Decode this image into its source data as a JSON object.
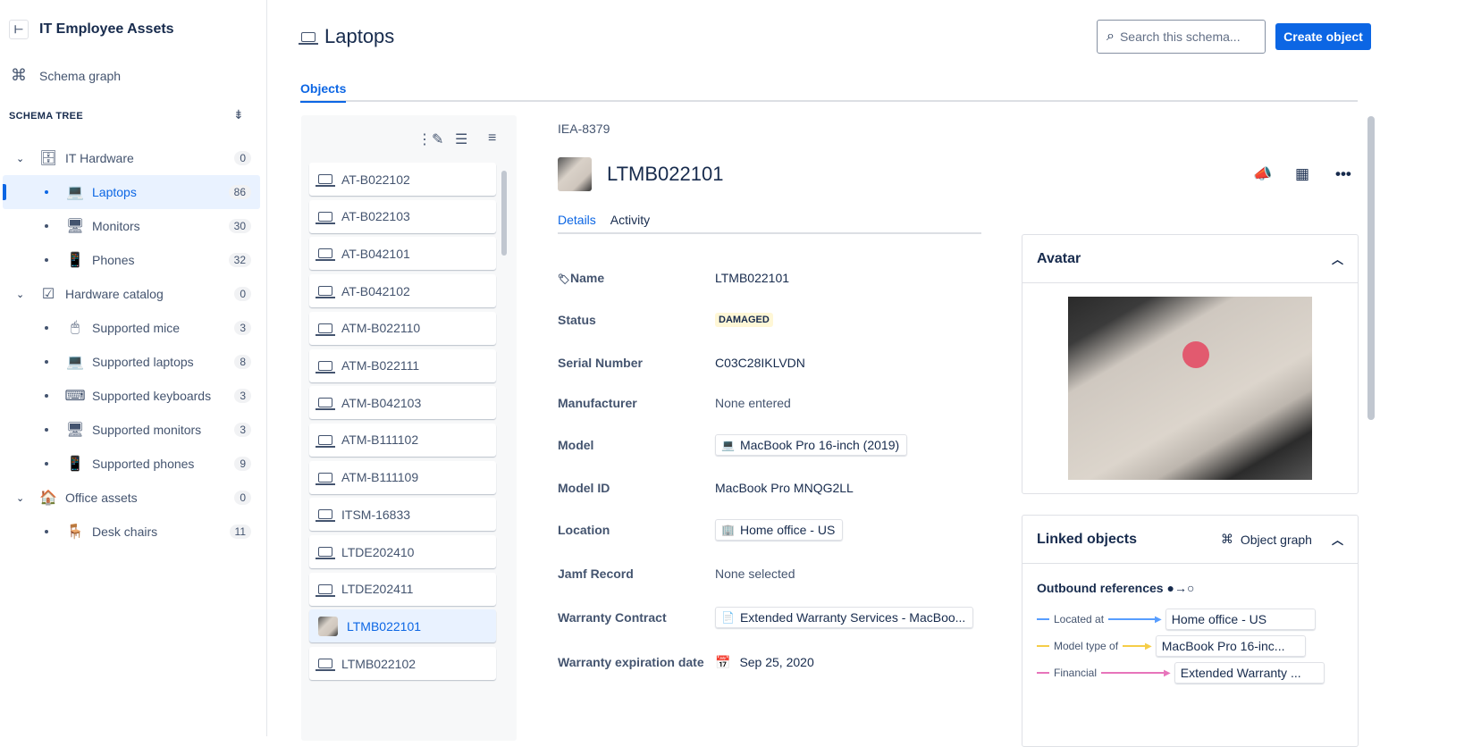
{
  "sidebar": {
    "title": "IT Employee Assets",
    "schema_graph": "Schema graph",
    "tree_heading": "SCHEMA TREE",
    "items": [
      {
        "label": "IT Hardware",
        "count": "0",
        "icon": "server-icon",
        "level": 0
      },
      {
        "label": "Laptops",
        "count": "86",
        "icon": "laptop-icon",
        "level": 1,
        "selected": true
      },
      {
        "label": "Monitors",
        "count": "30",
        "icon": "monitor-icon",
        "level": 1
      },
      {
        "label": "Phones",
        "count": "32",
        "icon": "phone-icon",
        "level": 1
      },
      {
        "label": "Hardware catalog",
        "count": "0",
        "icon": "checklist-icon",
        "level": 0
      },
      {
        "label": "Supported mice",
        "count": "3",
        "icon": "mouse-icon",
        "level": 1
      },
      {
        "label": "Supported laptops",
        "count": "8",
        "icon": "laptop-icon",
        "level": 1
      },
      {
        "label": "Supported keyboards",
        "count": "3",
        "icon": "keyboard-icon",
        "level": 1
      },
      {
        "label": "Supported monitors",
        "count": "3",
        "icon": "monitor-icon",
        "level": 1
      },
      {
        "label": "Supported phones",
        "count": "9",
        "icon": "phone-icon",
        "level": 1
      },
      {
        "label": "Office assets",
        "count": "0",
        "icon": "house-icon",
        "level": 0
      },
      {
        "label": "Desk chairs",
        "count": "11",
        "icon": "chair-icon",
        "level": 1
      }
    ]
  },
  "header": {
    "title": "Laptops",
    "search_placeholder": "Search this schema...",
    "create_label": "Create object",
    "tab": "Objects"
  },
  "list": {
    "items": [
      "AT-B022102",
      "AT-B022103",
      "AT-B042101",
      "AT-B042102",
      "ATM-B022110",
      "ATM-B022111",
      "ATM-B042103",
      "ATM-B111102",
      "ATM-B111109",
      "ITSM-16833",
      "LTDE202410",
      "LTDE202411",
      "LTMB022101",
      "LTMB022102"
    ],
    "selected": "LTMB022101"
  },
  "detail": {
    "key": "IEA-8379",
    "title": "LTMB022101",
    "tabs": [
      "Details",
      "Activity"
    ],
    "attributes": [
      {
        "label": "Name",
        "value": "LTMB022101"
      },
      {
        "label": "Status",
        "value": "DAMAGED"
      },
      {
        "label": "Serial Number",
        "value": "C03C28IKLVDN"
      },
      {
        "label": "Manufacturer",
        "value": "None entered"
      },
      {
        "label": "Model",
        "value": "MacBook Pro 16-inch (2019)"
      },
      {
        "label": "Model ID",
        "value": "MacBook Pro MNQG2LL"
      },
      {
        "label": "Location",
        "value": "Home office - US"
      },
      {
        "label": "Jamf Record",
        "value": "None selected"
      },
      {
        "label": "Warranty Contract",
        "value": "Extended Warranty Services - MacBoo..."
      },
      {
        "label": "Warranty expiration date",
        "value": "Sep 25, 2020"
      }
    ]
  },
  "avatar_card": {
    "title": "Avatar"
  },
  "linked": {
    "title": "Linked objects",
    "graph_label": "Object graph",
    "outbound": "Outbound references",
    "refs": [
      {
        "label": "Located at",
        "target": "Home office - US",
        "color": "#579dff"
      },
      {
        "label": "Model type of",
        "target": "MacBook Pro 16-inc...",
        "color": "#f5cd47"
      },
      {
        "label": "Financial",
        "target": "Extended Warranty ...",
        "color": "#e774bb"
      }
    ]
  },
  "colors": {
    "accent": "#0c66e4",
    "status_bg": "#fff7d6"
  }
}
